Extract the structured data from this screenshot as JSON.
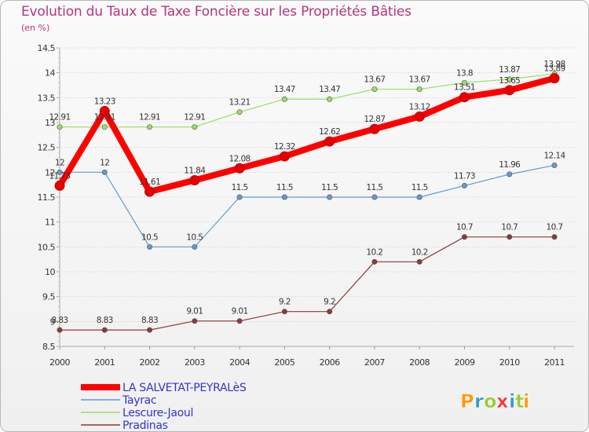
{
  "chart_data": {
    "type": "line",
    "title": "Evolution du Taux de Taxe Foncière sur les Propriétés Bâties",
    "subtitle": "(en %)",
    "x": [
      "2000",
      "2001",
      "2002",
      "2003",
      "2004",
      "2005",
      "2006",
      "2007",
      "2008",
      "2009",
      "2010",
      "2011"
    ],
    "ylim": [
      8.5,
      14.5
    ],
    "yticks": [
      "8.5",
      "9",
      "9.5",
      "10",
      "10.5",
      "11",
      "11.5",
      "12",
      "12.5",
      "13",
      "13.5",
      "14",
      "14.5"
    ],
    "grid": "horizontal dotted",
    "legend_position": "bottom-left",
    "series": [
      {
        "name": "LA SALVETAT-PEYRALèS",
        "color": "#ff0000",
        "emphasis": true,
        "values": [
          11.73,
          13.23,
          11.61,
          11.84,
          12.08,
          12.32,
          12.62,
          12.87,
          13.12,
          13.51,
          13.65,
          13.89
        ],
        "labels": [
          "11.73",
          "13.23",
          "11.61",
          "11.84",
          "12.08",
          "12.32",
          "12.62",
          "12.87",
          "13.12",
          "13.51",
          "13.65",
          "13.89"
        ]
      },
      {
        "name": "Tayrac",
        "color": "#6699cc",
        "values": [
          12,
          12,
          10.5,
          10.5,
          11.5,
          11.5,
          11.5,
          11.5,
          11.5,
          11.73,
          11.96,
          12.14
        ],
        "labels": [
          "12",
          "12",
          "10.5",
          "10.5",
          "11.5",
          "11.5",
          "11.5",
          "11.5",
          "11.5",
          "11.73",
          "11.96",
          "12.14"
        ]
      },
      {
        "name": "Lescure-Jaoul",
        "color": "#99dd66",
        "values": [
          12.91,
          12.91,
          12.91,
          12.91,
          13.21,
          13.47,
          13.47,
          13.67,
          13.67,
          13.8,
          13.87,
          13.98
        ],
        "labels": [
          "12.91",
          "12.91",
          "12.91",
          "12.91",
          "13.21",
          "13.47",
          "13.47",
          "13.67",
          "13.67",
          "13.8",
          "13.87",
          "13.98"
        ]
      },
      {
        "name": "Pradinas",
        "color": "#8b3a3a",
        "values": [
          8.83,
          8.83,
          8.83,
          9.01,
          9.01,
          9.2,
          9.2,
          10.2,
          10.2,
          10.7,
          10.7,
          10.7
        ],
        "labels": [
          "8.83",
          "8.83",
          "8.83",
          "9.01",
          "9.01",
          "9.2",
          "9.2",
          "10.2",
          "10.2",
          "10.7",
          "10.7",
          "10.7"
        ]
      }
    ]
  },
  "branding": {
    "logo_text": "Proxiti",
    "logo_letters": [
      "P",
      "r",
      "o",
      "x",
      "i",
      "t",
      "i"
    ],
    "logo_colors": [
      "#ff9900",
      "#3399cc",
      "#99cc33",
      "#ff3333",
      "#3399cc",
      "#99cc33",
      "#ff9900"
    ]
  }
}
